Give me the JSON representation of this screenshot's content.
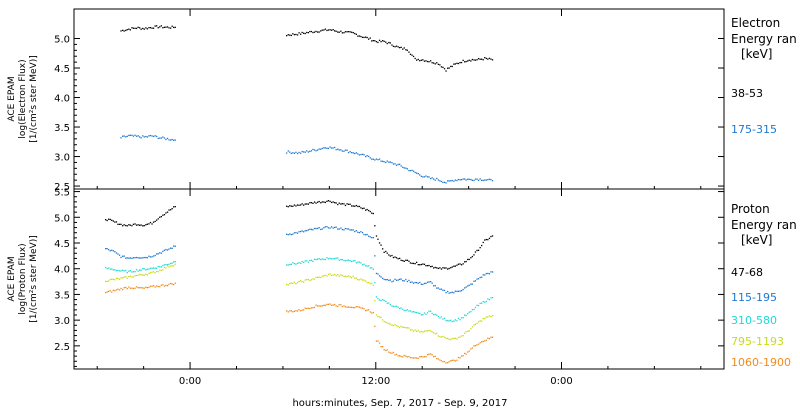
{
  "chart_data": [
    {
      "type": "scatter",
      "panel": "electron",
      "ylabel": [
        "ACE EPAM",
        "log(Electron Flux)",
        "[1/(cm²s ster MeV)]"
      ],
      "ylim": [
        2.45,
        5.5
      ],
      "yticks": [
        "5.0",
        "4.5",
        "4.0",
        "3.5",
        "3.0",
        "2.5"
      ],
      "ytick_values": [
        5.0,
        4.5,
        4.0,
        3.5,
        3.0,
        2.5
      ],
      "legend_title": [
        "Electron",
        "Energy ran",
        "[keV]"
      ],
      "series": [
        {
          "name": "38-53",
          "color": "#000000",
          "segments": [
            {
              "x": [
                -4.5,
                -4.0,
                -3.5,
                -3.0,
                -2.5,
                -2.0,
                -1.5,
                -1.0
              ],
              "y": [
                5.14,
                5.17,
                5.19,
                5.18,
                5.2,
                5.21,
                5.2,
                5.2
              ]
            },
            {
              "x": [
                6.2,
                7.0,
                8.0,
                9.0,
                9.5,
                10.5,
                11.0,
                11.5,
                12.0,
                12.5,
                13.0,
                13.5,
                14.0,
                14.5,
                15.0,
                15.5,
                16.0,
                16.5,
                17.0,
                17.5,
                18.0,
                18.5,
                19.0,
                19.5
              ],
              "y": [
                5.07,
                5.09,
                5.13,
                5.16,
                5.13,
                5.1,
                5.05,
                5.01,
                4.96,
                4.96,
                4.91,
                4.85,
                4.83,
                4.66,
                4.65,
                4.62,
                4.59,
                4.48,
                4.56,
                4.62,
                4.65,
                4.65,
                4.67,
                4.65
              ]
            }
          ]
        },
        {
          "name": "175-315",
          "color": "#1e78d2",
          "segments": [
            {
              "x": [
                -4.5,
                -4.0,
                -3.5,
                -3.0,
                -2.5,
                -2.0,
                -1.5,
                -1.0
              ],
              "y": [
                3.33,
                3.36,
                3.35,
                3.34,
                3.36,
                3.33,
                3.31,
                3.29
              ]
            },
            {
              "x": [
                6.2,
                7.0,
                8.0,
                8.8,
                9.5,
                10.5,
                11.0,
                11.5,
                12.0,
                12.5,
                13.0,
                13.5,
                14.0,
                14.5,
                15.0,
                15.5,
                16.0,
                16.5,
                17.0,
                17.5,
                18.0,
                18.5,
                19.0,
                19.5
              ],
              "y": [
                3.09,
                3.07,
                3.12,
                3.17,
                3.14,
                3.08,
                3.04,
                3.0,
                2.96,
                2.93,
                2.9,
                2.86,
                2.8,
                2.74,
                2.68,
                2.64,
                2.62,
                2.57,
                2.61,
                2.63,
                2.62,
                2.63,
                2.62,
                2.6
              ]
            }
          ]
        }
      ]
    },
    {
      "type": "scatter",
      "panel": "proton",
      "ylabel": [
        "ACE EPAM",
        "log(Proton Flux)",
        "[1/(cm²s ster MeV)]"
      ],
      "ylim": [
        2.05,
        5.55
      ],
      "yticks": [
        "5.5",
        "5.0",
        "4.5",
        "4.0",
        "3.5",
        "3.0",
        "2.5"
      ],
      "ytick_values": [
        5.5,
        5.0,
        4.5,
        4.0,
        3.5,
        3.0,
        2.5
      ],
      "legend_title": [
        "Proton",
        "Energy ran",
        "[keV]"
      ],
      "xlabel": "hours:minutes, Sep.  7, 2017 - Sep.  9, 2017",
      "xlim": [
        -7.5,
        34.5
      ],
      "xticks": [
        "0:00",
        "12:00",
        "0:00"
      ],
      "xtick_values": [
        0,
        12,
        24
      ],
      "series": [
        {
          "name": "47-68",
          "color": "#000000",
          "segments": [
            {
              "x": [
                -5.5,
                -5.0,
                -4.5,
                -4.0,
                -3.5,
                -3.0,
                -2.5,
                -2.0,
                -1.5,
                -1.0
              ],
              "y": [
                4.98,
                4.93,
                4.87,
                4.85,
                4.88,
                4.86,
                4.9,
                5.02,
                5.12,
                5.22
              ]
            },
            {
              "x": [
                6.2,
                7.0,
                8.0,
                9.0,
                9.5,
                10.5,
                11.0,
                11.5,
                11.8,
                12.0,
                12.5,
                13.0,
                13.5,
                14.0,
                14.5,
                15.0,
                15.5,
                16.0,
                16.5,
                17.0,
                17.5,
                18.0,
                18.5,
                19.0,
                19.5
              ],
              "y": [
                5.22,
                5.25,
                5.3,
                5.33,
                5.28,
                5.24,
                5.2,
                5.14,
                5.08,
                4.65,
                4.35,
                4.25,
                4.2,
                4.16,
                4.12,
                4.1,
                4.07,
                4.01,
                4.02,
                4.05,
                4.1,
                4.2,
                4.35,
                4.55,
                4.65
              ]
            }
          ]
        },
        {
          "name": "115-195",
          "color": "#1e78d2",
          "segments": [
            {
              "x": [
                -5.5,
                -5.0,
                -4.5,
                -4.0,
                -3.5,
                -3.0,
                -2.5,
                -2.0,
                -1.5,
                -1.0
              ],
              "y": [
                4.4,
                4.35,
                4.25,
                4.22,
                4.24,
                4.23,
                4.26,
                4.32,
                4.38,
                4.45
              ]
            },
            {
              "x": [
                6.2,
                7.0,
                8.0,
                9.0,
                9.5,
                10.5,
                11.0,
                11.5,
                11.8,
                12.0,
                12.5,
                13.0,
                13.5,
                14.0,
                14.5,
                15.0,
                15.5,
                16.0,
                16.5,
                17.0,
                17.5,
                18.0,
                18.5,
                19.0,
                19.5
              ],
              "y": [
                4.68,
                4.72,
                4.78,
                4.82,
                4.8,
                4.76,
                4.72,
                4.66,
                4.6,
                3.92,
                3.82,
                3.78,
                3.8,
                3.78,
                3.74,
                3.72,
                3.75,
                3.62,
                3.56,
                3.55,
                3.6,
                3.68,
                3.8,
                3.9,
                3.95
              ]
            }
          ]
        },
        {
          "name": "310-580",
          "color": "#22d8d8",
          "segments": [
            {
              "x": [
                -5.5,
                -5.0,
                -4.5,
                -4.0,
                -3.5,
                -3.0,
                -2.5,
                -2.0,
                -1.5,
                -1.0
              ],
              "y": [
                4.02,
                4.0,
                3.97,
                3.95,
                3.98,
                4.0,
                4.02,
                4.05,
                4.1,
                4.15
              ]
            },
            {
              "x": [
                6.2,
                7.0,
                8.0,
                9.0,
                9.5,
                10.5,
                11.0,
                11.5,
                11.8,
                12.0,
                12.5,
                13.0,
                13.5,
                14.0,
                14.5,
                15.0,
                15.5,
                16.0,
                16.5,
                17.0,
                17.5,
                18.0,
                18.5,
                19.0,
                19.5
              ],
              "y": [
                4.1,
                4.12,
                4.18,
                4.22,
                4.2,
                4.16,
                4.12,
                4.06,
                4.0,
                3.45,
                3.38,
                3.3,
                3.25,
                3.2,
                3.15,
                3.12,
                3.18,
                3.08,
                3.02,
                3.0,
                3.05,
                3.15,
                3.28,
                3.38,
                3.45
              ]
            }
          ]
        },
        {
          "name": "795-1193",
          "color": "#c8dc14",
          "segments": [
            {
              "x": [
                -5.5,
                -5.0,
                -4.5,
                -4.0,
                -3.5,
                -3.0,
                -2.5,
                -2.0,
                -1.5,
                -1.0
              ],
              "y": [
                3.78,
                3.8,
                3.82,
                3.85,
                3.88,
                3.9,
                3.93,
                3.98,
                4.05,
                4.1
              ]
            },
            {
              "x": [
                6.2,
                7.0,
                8.0,
                9.0,
                9.5,
                10.5,
                11.0,
                11.5,
                11.8,
                12.0,
                12.5,
                13.0,
                13.5,
                14.0,
                14.5,
                15.0,
                15.5,
                16.0,
                16.5,
                17.0,
                17.5,
                18.0,
                18.5,
                19.0,
                19.5
              ],
              "y": [
                3.7,
                3.75,
                3.82,
                3.9,
                3.88,
                3.85,
                3.8,
                3.75,
                3.7,
                3.12,
                3.0,
                2.93,
                2.88,
                2.85,
                2.8,
                2.78,
                2.82,
                2.72,
                2.66,
                2.64,
                2.7,
                2.82,
                2.95,
                3.05,
                3.1
              ]
            }
          ]
        },
        {
          "name": "1060-1900",
          "color": "#f08c1e",
          "segments": [
            {
              "x": [
                -5.5,
                -5.0,
                -4.5,
                -4.0,
                -3.5,
                -3.0,
                -2.5,
                -2.0,
                -1.5,
                -1.0
              ],
              "y": [
                3.55,
                3.58,
                3.62,
                3.65,
                3.64,
                3.63,
                3.66,
                3.68,
                3.7,
                3.73
              ]
            },
            {
              "x": [
                6.2,
                7.0,
                8.0,
                9.0,
                9.5,
                10.5,
                11.0,
                11.5,
                11.8,
                12.0,
                12.5,
                13.0,
                13.5,
                14.0,
                14.5,
                15.0,
                15.5,
                16.0,
                16.5,
                17.0,
                17.5,
                18.0,
                18.5,
                19.0,
                19.5
              ],
              "y": [
                3.18,
                3.2,
                3.28,
                3.32,
                3.3,
                3.27,
                3.24,
                3.2,
                3.15,
                2.62,
                2.45,
                2.38,
                2.32,
                2.3,
                2.28,
                2.3,
                2.35,
                2.25,
                2.2,
                2.22,
                2.3,
                2.42,
                2.55,
                2.62,
                2.68
              ]
            }
          ]
        }
      ]
    }
  ]
}
